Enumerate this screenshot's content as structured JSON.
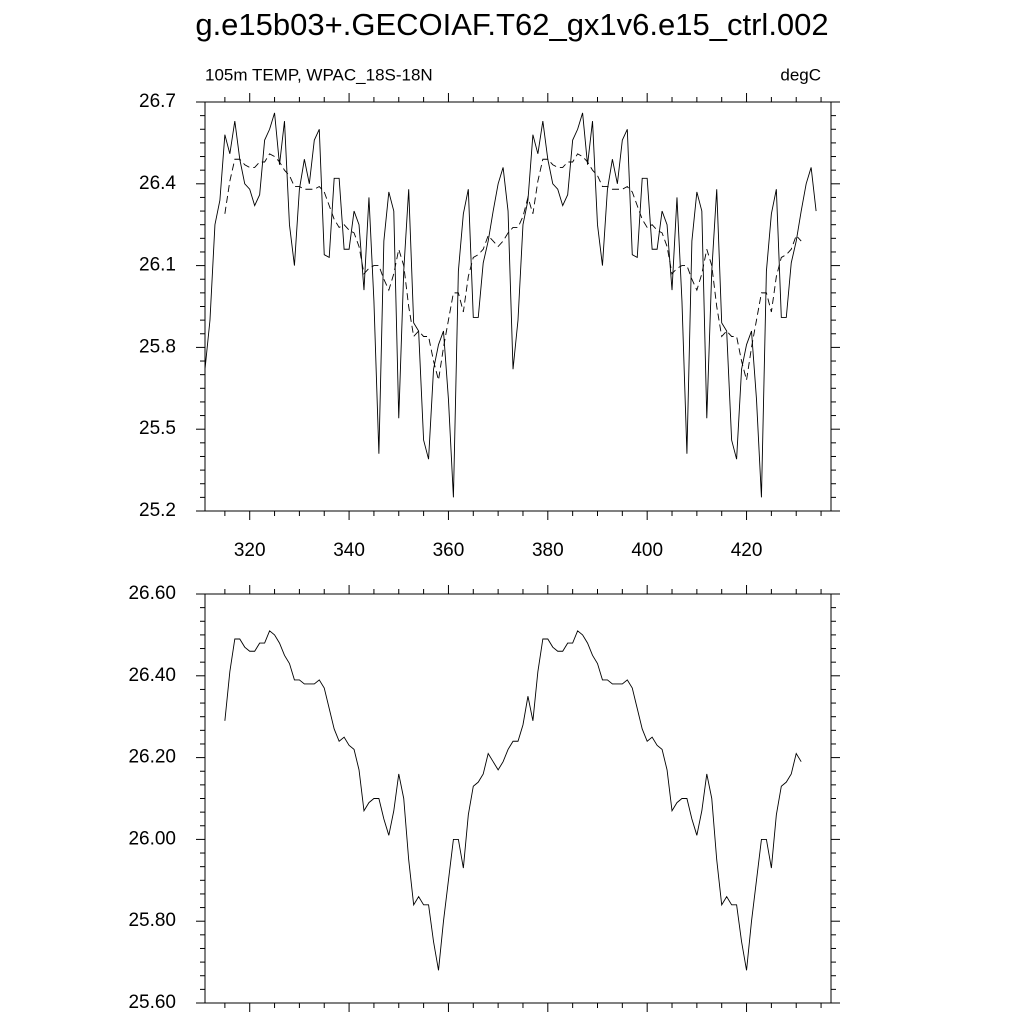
{
  "title": "g.e15b03+.GECOIAF.T62_gx1v6.e15_ctrl.002",
  "chart_data": [
    {
      "type": "line",
      "left_string": "105m TEMP, WPAC_18S-18N",
      "right_string": "degC",
      "x": [
        311,
        312,
        313,
        314,
        315,
        316,
        317,
        318,
        319,
        320,
        321,
        322,
        323,
        324,
        325,
        326,
        327,
        328,
        329,
        330,
        331,
        332,
        333,
        334,
        335,
        336,
        337,
        338,
        339,
        340,
        341,
        342,
        343,
        344,
        345,
        346,
        347,
        348,
        349,
        350,
        351,
        352,
        353,
        354,
        355,
        356,
        357,
        358,
        359,
        360,
        361,
        362,
        363,
        364,
        365,
        366,
        367,
        368,
        369,
        370,
        371,
        372,
        373,
        374,
        375,
        376,
        377,
        378,
        379,
        380,
        381,
        382,
        383,
        384,
        385,
        386,
        387,
        388,
        389,
        390,
        391,
        392,
        393,
        394,
        395,
        396,
        397,
        398,
        399,
        400,
        401,
        402,
        403,
        404,
        405,
        406,
        407,
        408,
        409,
        410,
        411,
        412,
        413,
        414,
        415,
        416,
        417,
        418,
        419,
        420,
        421,
        422,
        423,
        424,
        425,
        426,
        427,
        428,
        429,
        430,
        431,
        432,
        433,
        434
      ],
      "series": [
        {
          "color": "#000000",
          "dash": false,
          "values": [
            25.72,
            25.9,
            26.25,
            26.34,
            26.58,
            26.51,
            26.63,
            26.49,
            26.4,
            26.38,
            26.32,
            26.36,
            26.56,
            26.6,
            26.66,
            26.47,
            26.63,
            26.25,
            26.1,
            26.38,
            26.49,
            26.4,
            26.56,
            26.6,
            26.14,
            26.13,
            26.42,
            26.42,
            26.16,
            26.16,
            26.3,
            26.25,
            26.01,
            26.35,
            25.97,
            25.41,
            26.19,
            26.37,
            26.3,
            25.54,
            26.08,
            26.38,
            25.89,
            25.86,
            25.46,
            25.39,
            25.72,
            25.81,
            25.86,
            25.61,
            25.25,
            26.08,
            26.29,
            26.38,
            25.91,
            25.91,
            26.11,
            26.19,
            26.3,
            26.4,
            26.46,
            26.3,
            25.72,
            25.9,
            26.25,
            26.34,
            26.58,
            26.51,
            26.63,
            26.49,
            26.4,
            26.38,
            26.32,
            26.36,
            26.56,
            26.6,
            26.66,
            26.47,
            26.63,
            26.25,
            26.1,
            26.38,
            26.49,
            26.4,
            26.56,
            26.6,
            26.14,
            26.13,
            26.42,
            26.42,
            26.16,
            26.16,
            26.3,
            26.25,
            26.01,
            26.35,
            25.97,
            25.41,
            26.19,
            26.37,
            26.3,
            25.54,
            26.08,
            26.38,
            25.89,
            25.86,
            25.46,
            25.39,
            25.72,
            25.81,
            25.86,
            25.61,
            25.25,
            26.08,
            26.29,
            26.38,
            25.91,
            25.91,
            26.11,
            26.19,
            26.3,
            26.4,
            26.46,
            26.3
          ]
        },
        {
          "color": "#000000",
          "dash": true,
          "values": [
            null,
            null,
            null,
            null,
            26.29,
            26.41,
            26.49,
            26.49,
            26.47,
            26.46,
            26.46,
            26.48,
            26.48,
            26.51,
            26.5,
            26.48,
            26.45,
            26.43,
            26.39,
            26.39,
            26.38,
            26.38,
            26.38,
            26.39,
            26.37,
            26.32,
            26.27,
            26.24,
            26.25,
            26.23,
            26.22,
            26.17,
            26.07,
            26.09,
            26.1,
            26.1,
            26.05,
            26.01,
            26.07,
            26.16,
            26.1,
            25.95,
            25.84,
            25.86,
            25.84,
            25.84,
            25.75,
            25.68,
            25.8,
            25.9,
            26.0,
            26.0,
            25.93,
            26.06,
            26.13,
            26.14,
            26.16,
            26.21,
            26.19,
            26.17,
            26.19,
            26.22,
            26.24,
            26.24,
            26.28,
            26.35,
            26.29,
            26.41,
            26.49,
            26.49,
            26.47,
            26.46,
            26.46,
            26.48,
            26.48,
            26.51,
            26.5,
            26.48,
            26.45,
            26.43,
            26.39,
            26.39,
            26.38,
            26.38,
            26.38,
            26.39,
            26.37,
            26.32,
            26.27,
            26.24,
            26.25,
            26.23,
            26.22,
            26.17,
            26.07,
            26.09,
            26.1,
            26.1,
            26.05,
            26.01,
            26.07,
            26.16,
            26.1,
            25.95,
            25.84,
            25.86,
            25.84,
            25.84,
            25.75,
            25.68,
            25.8,
            25.9,
            26.0,
            26.0,
            25.93,
            26.06,
            26.13,
            26.14,
            26.16,
            26.21,
            26.19,
            null,
            null,
            null
          ]
        }
      ],
      "xlim": [
        311,
        437
      ],
      "xticks": [
        320,
        340,
        360,
        380,
        400,
        420
      ],
      "xtick_labels": true,
      "ylim": [
        25.2,
        26.7
      ],
      "yticks": [
        25.2,
        25.5,
        25.8,
        26.1,
        26.4,
        26.7
      ]
    },
    {
      "type": "line",
      "x": [
        311,
        312,
        313,
        314,
        315,
        316,
        317,
        318,
        319,
        320,
        321,
        322,
        323,
        324,
        325,
        326,
        327,
        328,
        329,
        330,
        331,
        332,
        333,
        334,
        335,
        336,
        337,
        338,
        339,
        340,
        341,
        342,
        343,
        344,
        345,
        346,
        347,
        348,
        349,
        350,
        351,
        352,
        353,
        354,
        355,
        356,
        357,
        358,
        359,
        360,
        361,
        362,
        363,
        364,
        365,
        366,
        367,
        368,
        369,
        370,
        371,
        372,
        373,
        374,
        375,
        376,
        377,
        378,
        379,
        380,
        381,
        382,
        383,
        384,
        385,
        386,
        387,
        388,
        389,
        390,
        391,
        392,
        393,
        394,
        395,
        396,
        397,
        398,
        399,
        400,
        401,
        402,
        403,
        404,
        405,
        406,
        407,
        408,
        409,
        410,
        411,
        412,
        413,
        414,
        415,
        416,
        417,
        418,
        419,
        420,
        421,
        422,
        423,
        424,
        425,
        426,
        427,
        428,
        429,
        430,
        431,
        432,
        433,
        434
      ],
      "series": [
        {
          "color": "#000000",
          "dash": false,
          "values": [
            null,
            null,
            null,
            null,
            26.29,
            26.41,
            26.49,
            26.49,
            26.47,
            26.46,
            26.46,
            26.48,
            26.48,
            26.51,
            26.5,
            26.48,
            26.45,
            26.43,
            26.39,
            26.39,
            26.38,
            26.38,
            26.38,
            26.39,
            26.37,
            26.32,
            26.27,
            26.24,
            26.25,
            26.23,
            26.22,
            26.17,
            26.07,
            26.09,
            26.1,
            26.1,
            26.05,
            26.01,
            26.07,
            26.16,
            26.1,
            25.95,
            25.84,
            25.86,
            25.84,
            25.84,
            25.75,
            25.68,
            25.8,
            25.9,
            26.0,
            26.0,
            25.93,
            26.06,
            26.13,
            26.14,
            26.16,
            26.21,
            26.19,
            26.17,
            26.19,
            26.22,
            26.24,
            26.24,
            26.28,
            26.35,
            26.29,
            26.41,
            26.49,
            26.49,
            26.47,
            26.46,
            26.46,
            26.48,
            26.48,
            26.51,
            26.5,
            26.48,
            26.45,
            26.43,
            26.39,
            26.39,
            26.38,
            26.38,
            26.38,
            26.39,
            26.37,
            26.32,
            26.27,
            26.24,
            26.25,
            26.23,
            26.22,
            26.17,
            26.07,
            26.09,
            26.1,
            26.1,
            26.05,
            26.01,
            26.07,
            26.16,
            26.1,
            25.95,
            25.84,
            25.86,
            25.84,
            25.84,
            25.75,
            25.68,
            25.8,
            25.9,
            26.0,
            26.0,
            25.93,
            26.06,
            26.13,
            26.14,
            26.16,
            26.21,
            26.19,
            null,
            null,
            null
          ]
        }
      ],
      "xlim": [
        311,
        437
      ],
      "xticks": [
        320,
        340,
        360,
        380,
        400,
        420
      ],
      "xtick_labels": false,
      "ylim": [
        25.6,
        26.6
      ],
      "yticks": [
        {
          "value": 25.6,
          "label": "25.60"
        },
        {
          "value": 25.8,
          "label": "25.80"
        },
        {
          "value": 26.0,
          "label": "26.00"
        },
        {
          "value": 26.2,
          "label": "26.20"
        },
        {
          "value": 26.4,
          "label": "26.40"
        },
        {
          "value": 26.6,
          "label": "26.60"
        }
      ]
    }
  ]
}
